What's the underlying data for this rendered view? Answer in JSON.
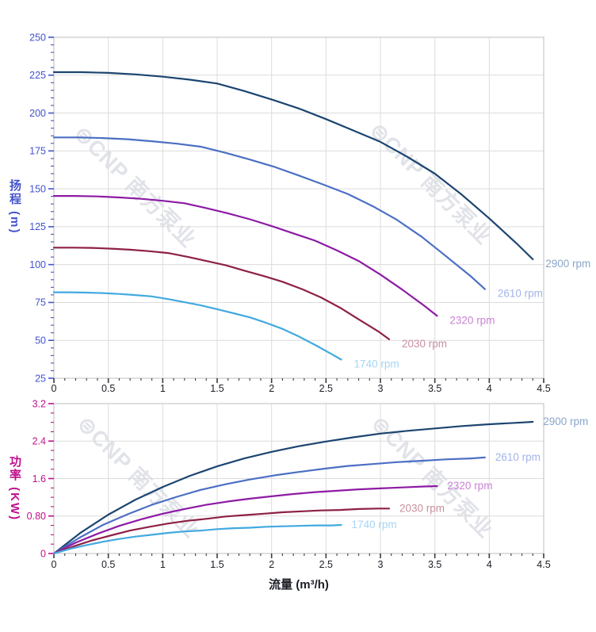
{
  "watermark": {
    "text": "⊜CNP 南方泵业"
  },
  "chart_data": [
    {
      "type": "line",
      "name": "head",
      "title": "",
      "y_title": "扬程 (m)",
      "x_title": "",
      "legend_position": "curve-end-labels",
      "grid": true,
      "x_axis": {
        "min": 0,
        "max": 4.5,
        "major_step": 0.5,
        "minor_step": 0.1,
        "tick_labels": [
          "0",
          "0.5",
          "1",
          "1.5",
          "2",
          "2.5",
          "3",
          "3.5",
          "4",
          "4.5"
        ]
      },
      "y_axis": {
        "min": 25,
        "max": 250,
        "major_step": 25,
        "minor_step": 5,
        "tick_labels": [
          "25",
          "50",
          "75",
          "100",
          "125",
          "150",
          "175",
          "200",
          "225",
          "250"
        ]
      },
      "colors": {
        "axis": "#4353cd",
        "x_labels": "#1c1e26",
        "x_ticks": "#3a3a42",
        "grid": "#dcdcdc",
        "border": "#cfcfcf"
      },
      "series": [
        {
          "name": "2900 rpm",
          "color": "#1c4570",
          "label_color": "#8aa6c9",
          "points": [
            [
              0,
              227
            ],
            [
              0.25,
              227
            ],
            [
              0.5,
              226.5
            ],
            [
              0.75,
              225.5
            ],
            [
              1,
              224
            ],
            [
              1.25,
              222
            ],
            [
              1.5,
              219.5
            ],
            [
              1.75,
              214.5
            ],
            [
              2,
              209
            ],
            [
              2.25,
              203
            ],
            [
              2.5,
              196
            ],
            [
              2.75,
              188.5
            ],
            [
              3,
              181
            ],
            [
              3.25,
              171
            ],
            [
              3.5,
              160
            ],
            [
              3.75,
              146
            ],
            [
              4,
              130.5
            ],
            [
              4.25,
              114
            ],
            [
              4.4,
              103.5
            ]
          ]
        },
        {
          "name": "2610 rpm",
          "color": "#4c6fc4",
          "label_color": "#a4b4e6",
          "points": [
            [
              0,
              183.9
            ],
            [
              0.23,
              183.9
            ],
            [
              0.45,
              183.5
            ],
            [
              0.68,
              182.7
            ],
            [
              0.9,
              181.4
            ],
            [
              1.13,
              179.8
            ],
            [
              1.35,
              177.8
            ],
            [
              1.58,
              173.7
            ],
            [
              1.8,
              169.3
            ],
            [
              2.03,
              164.4
            ],
            [
              2.25,
              158.8
            ],
            [
              2.48,
              152.7
            ],
            [
              2.7,
              146.6
            ],
            [
              2.93,
              138.5
            ],
            [
              3.15,
              129.6
            ],
            [
              3.38,
              118.3
            ],
            [
              3.6,
              105.7
            ],
            [
              3.83,
              92.3
            ],
            [
              3.96,
              83.8
            ]
          ]
        },
        {
          "name": "2320 rpm",
          "color": "#8d1ba4",
          "label_color": "#c982d4",
          "points": [
            [
              0,
              145.3
            ],
            [
              0.2,
              145.3
            ],
            [
              0.4,
              145
            ],
            [
              0.6,
              144.3
            ],
            [
              0.8,
              143.4
            ],
            [
              1,
              142.1
            ],
            [
              1.2,
              140.5
            ],
            [
              1.4,
              137.3
            ],
            [
              1.6,
              133.8
            ],
            [
              1.8,
              129.9
            ],
            [
              2,
              125.4
            ],
            [
              2.2,
              120.6
            ],
            [
              2.4,
              115.8
            ],
            [
              2.6,
              109.4
            ],
            [
              2.8,
              102.4
            ],
            [
              3,
              93.4
            ],
            [
              3.2,
              83.5
            ],
            [
              3.4,
              73
            ],
            [
              3.52,
              66.2
            ]
          ]
        },
        {
          "name": "2030 rpm",
          "color": "#8e2045",
          "label_color": "#c9909f",
          "points": [
            [
              0,
              111.2
            ],
            [
              0.18,
              111.2
            ],
            [
              0.35,
              111
            ],
            [
              0.53,
              110.5
            ],
            [
              0.7,
              109.8
            ],
            [
              0.88,
              108.8
            ],
            [
              1.05,
              107.6
            ],
            [
              1.23,
              105.1
            ],
            [
              1.4,
              102.4
            ],
            [
              1.58,
              99.5
            ],
            [
              1.75,
              96
            ],
            [
              1.93,
              92.4
            ],
            [
              2.1,
              88.7
            ],
            [
              2.28,
              83.8
            ],
            [
              2.45,
              78.4
            ],
            [
              2.63,
              71.5
            ],
            [
              2.8,
              63.9
            ],
            [
              2.98,
              55.9
            ],
            [
              3.08,
              50.7
            ]
          ]
        },
        {
          "name": "1740 rpm",
          "color": "#42a9e0",
          "label_color": "#a5d5f3",
          "points": [
            [
              0,
              81.7
            ],
            [
              0.15,
              81.7
            ],
            [
              0.3,
              81.5
            ],
            [
              0.45,
              81.2
            ],
            [
              0.6,
              80.6
            ],
            [
              0.75,
              79.9
            ],
            [
              0.9,
              79
            ],
            [
              1.05,
              77.2
            ],
            [
              1.2,
              75.2
            ],
            [
              1.35,
              73.1
            ],
            [
              1.5,
              70.6
            ],
            [
              1.65,
              67.9
            ],
            [
              1.8,
              65.2
            ],
            [
              1.95,
              61.6
            ],
            [
              2.1,
              57.6
            ],
            [
              2.25,
              52.6
            ],
            [
              2.4,
              47
            ],
            [
              2.55,
              41
            ],
            [
              2.64,
              37.3
            ]
          ]
        }
      ]
    },
    {
      "type": "line",
      "name": "power",
      "title": "",
      "y_title": "功率 (KW)",
      "x_title": "流量 (m³/h)",
      "legend_position": "curve-end-labels",
      "grid": true,
      "x_axis": {
        "min": 0,
        "max": 4.5,
        "major_step": 0.5,
        "minor_step": 0.1,
        "tick_labels": [
          "0",
          "0.5",
          "1",
          "1.5",
          "2",
          "2.5",
          "3",
          "3.5",
          "4",
          "4.5"
        ]
      },
      "y_axis": {
        "min": 0,
        "max": 3.2,
        "major_step": 0.8,
        "minor_step": 0.2,
        "tick_labels": [
          "0",
          "0.80",
          "1.6",
          "2.4",
          "3.2"
        ]
      },
      "colors": {
        "axis": "#c0108c",
        "x_labels": "#1c1e26",
        "x_ticks": "#3a3a42",
        "grid": "#dcdcdc",
        "border": "#cfcfcf"
      },
      "series": [
        {
          "name": "2900 rpm",
          "color": "#1c4570",
          "label_color": "#8aa6c9",
          "points": [
            [
              0,
              0
            ],
            [
              0.25,
              0.45
            ],
            [
              0.5,
              0.83
            ],
            [
              0.75,
              1.15
            ],
            [
              1,
              1.42
            ],
            [
              1.25,
              1.66
            ],
            [
              1.5,
              1.86
            ],
            [
              1.75,
              2.03
            ],
            [
              2,
              2.17
            ],
            [
              2.25,
              2.29
            ],
            [
              2.5,
              2.39
            ],
            [
              2.75,
              2.48
            ],
            [
              3,
              2.56
            ],
            [
              3.25,
              2.62
            ],
            [
              3.5,
              2.67
            ],
            [
              3.75,
              2.72
            ],
            [
              4,
              2.76
            ],
            [
              4.25,
              2.79
            ],
            [
              4.4,
              2.81
            ]
          ]
        },
        {
          "name": "2610 rpm",
          "color": "#4c6fc4",
          "label_color": "#a4b4e6",
          "points": [
            [
              0,
              0
            ],
            [
              0.23,
              0.33
            ],
            [
              0.45,
              0.61
            ],
            [
              0.68,
              0.84
            ],
            [
              0.9,
              1.04
            ],
            [
              1.13,
              1.21
            ],
            [
              1.35,
              1.36
            ],
            [
              1.58,
              1.48
            ],
            [
              1.8,
              1.58
            ],
            [
              2.03,
              1.67
            ],
            [
              2.25,
              1.74
            ],
            [
              2.48,
              1.81
            ],
            [
              2.7,
              1.87
            ],
            [
              2.93,
              1.91
            ],
            [
              3.15,
              1.95
            ],
            [
              3.38,
              1.98
            ],
            [
              3.6,
              2.01
            ],
            [
              3.83,
              2.03
            ],
            [
              3.96,
              2.05
            ]
          ]
        },
        {
          "name": "2320 rpm",
          "color": "#8d1ba4",
          "label_color": "#c982d4",
          "points": [
            [
              0,
              0
            ],
            [
              0.2,
              0.23
            ],
            [
              0.4,
              0.42
            ],
            [
              0.6,
              0.59
            ],
            [
              0.8,
              0.73
            ],
            [
              1,
              0.85
            ],
            [
              1.2,
              0.95
            ],
            [
              1.4,
              1.04
            ],
            [
              1.6,
              1.11
            ],
            [
              1.8,
              1.17
            ],
            [
              2,
              1.22
            ],
            [
              2.2,
              1.27
            ],
            [
              2.4,
              1.31
            ],
            [
              2.6,
              1.34
            ],
            [
              2.8,
              1.37
            ],
            [
              3,
              1.39
            ],
            [
              3.2,
              1.41
            ],
            [
              3.4,
              1.43
            ],
            [
              3.52,
              1.44
            ]
          ]
        },
        {
          "name": "2030 rpm",
          "color": "#8e2045",
          "label_color": "#c9909f",
          "points": [
            [
              0,
              0
            ],
            [
              0.18,
              0.15
            ],
            [
              0.35,
              0.28
            ],
            [
              0.53,
              0.39
            ],
            [
              0.7,
              0.49
            ],
            [
              0.88,
              0.57
            ],
            [
              1.05,
              0.64
            ],
            [
              1.23,
              0.7
            ],
            [
              1.4,
              0.74
            ],
            [
              1.58,
              0.79
            ],
            [
              1.75,
              0.82
            ],
            [
              1.93,
              0.85
            ],
            [
              2.1,
              0.88
            ],
            [
              2.28,
              0.9
            ],
            [
              2.45,
              0.92
            ],
            [
              2.63,
              0.93
            ],
            [
              2.8,
              0.95
            ],
            [
              2.98,
              0.96
            ],
            [
              3.08,
              0.96
            ]
          ]
        },
        {
          "name": "1740 rpm",
          "color": "#42a9e0",
          "label_color": "#a5d5f3",
          "points": [
            [
              0,
              0
            ],
            [
              0.15,
              0.1
            ],
            [
              0.3,
              0.18
            ],
            [
              0.45,
              0.25
            ],
            [
              0.6,
              0.31
            ],
            [
              0.75,
              0.36
            ],
            [
              0.9,
              0.4
            ],
            [
              1.05,
              0.44
            ],
            [
              1.2,
              0.47
            ],
            [
              1.35,
              0.49
            ],
            [
              1.5,
              0.52
            ],
            [
              1.65,
              0.54
            ],
            [
              1.8,
              0.55
            ],
            [
              1.95,
              0.57
            ],
            [
              2.1,
              0.58
            ],
            [
              2.25,
              0.59
            ],
            [
              2.4,
              0.6
            ],
            [
              2.55,
              0.6
            ],
            [
              2.64,
              0.61
            ]
          ]
        }
      ]
    }
  ]
}
